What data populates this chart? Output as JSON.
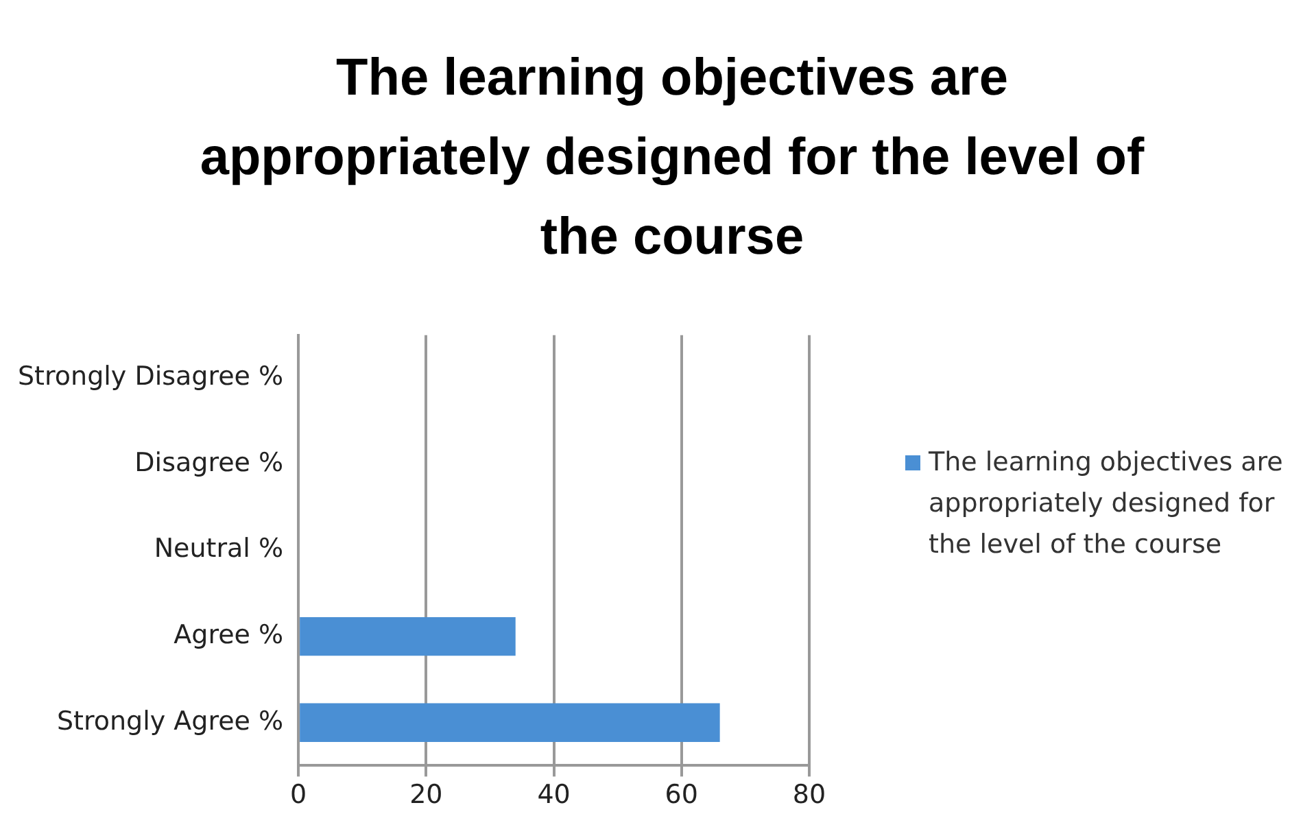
{
  "chart_data": {
    "type": "bar",
    "orientation": "horizontal",
    "title": "The learning objectives are appropriately designed for the level of the course",
    "categories": [
      "Strongly Disagree %",
      "Disagree %",
      "Neutral %",
      "Agree %",
      "Strongly Agree %"
    ],
    "series": [
      {
        "name": "The learning objectives are appropriately designed for the level of the course",
        "color": "#4a8fd4",
        "values": [
          0,
          0,
          0,
          34,
          66
        ]
      }
    ],
    "xlim": [
      0,
      80
    ],
    "xticks": [
      0,
      20,
      40,
      60,
      80
    ],
    "grid": "x",
    "legend": "right"
  }
}
